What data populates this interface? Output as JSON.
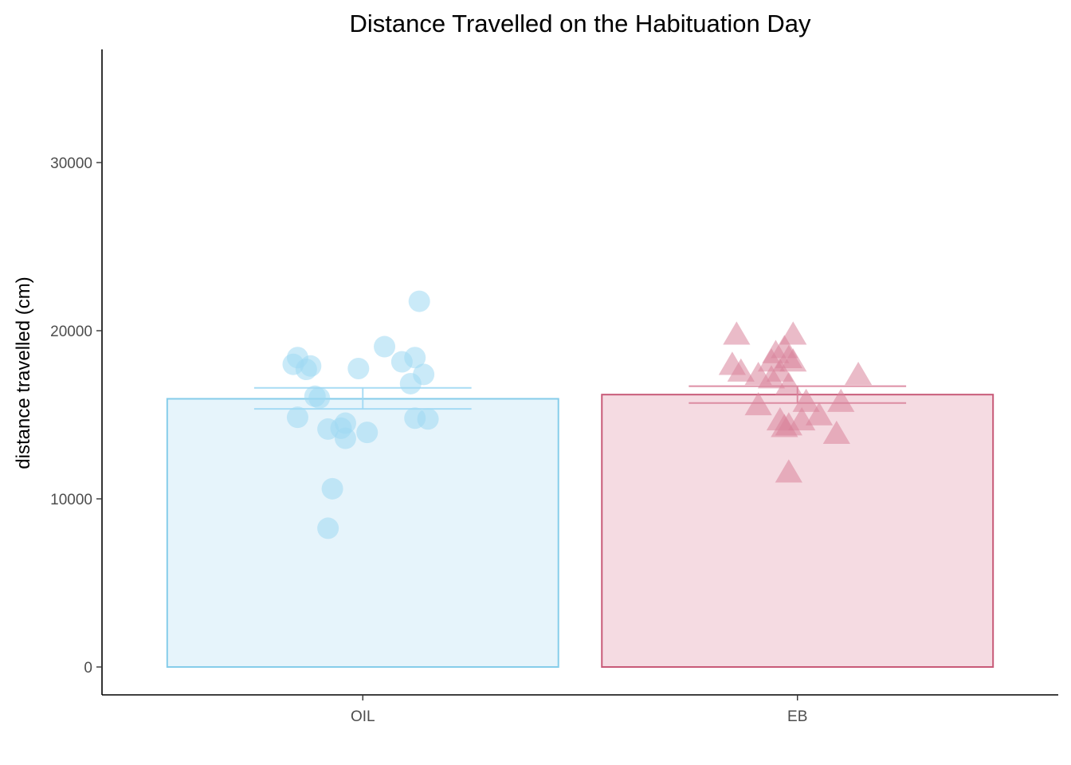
{
  "chart_data": {
    "type": "bar",
    "title": "Distance Travelled on the Habituation Day",
    "xlabel": "",
    "ylabel": "distance travelled (cm)",
    "ylim": [
      -1700,
      36500
    ],
    "yticks": [
      0,
      10000,
      20000,
      30000
    ],
    "grid": false,
    "legend": "none",
    "categories": [
      "OIL",
      "EB"
    ],
    "series": [
      {
        "category": "OIL",
        "mean": 15950,
        "se_low": 15350,
        "se_high": 16600,
        "fill": "#e6f4fb",
        "stroke": "#86cdea",
        "point_color": "#9ed8f3",
        "marker": "circle",
        "points": [
          {
            "offset": -0.15,
            "y": 18400
          },
          {
            "offset": -0.16,
            "y": 18000
          },
          {
            "offset": -0.12,
            "y": 17900
          },
          {
            "offset": -0.13,
            "y": 17700
          },
          {
            "offset": -0.11,
            "y": 16100
          },
          {
            "offset": -0.1,
            "y": 16000
          },
          {
            "offset": -0.15,
            "y": 14850
          },
          {
            "offset": -0.08,
            "y": 14150
          },
          {
            "offset": -0.05,
            "y": 14200
          },
          {
            "offset": -0.04,
            "y": 14500
          },
          {
            "offset": -0.04,
            "y": 13600
          },
          {
            "offset": 0.01,
            "y": 13950
          },
          {
            "offset": -0.07,
            "y": 10600
          },
          {
            "offset": -0.08,
            "y": 8250
          },
          {
            "offset": -0.01,
            "y": 17750
          },
          {
            "offset": 0.05,
            "y": 19050
          },
          {
            "offset": 0.09,
            "y": 18150
          },
          {
            "offset": 0.12,
            "y": 18400
          },
          {
            "offset": 0.14,
            "y": 17400
          },
          {
            "offset": 0.11,
            "y": 16850
          },
          {
            "offset": 0.12,
            "y": 14800
          },
          {
            "offset": 0.15,
            "y": 14750
          },
          {
            "offset": 0.13,
            "y": 21750
          }
        ]
      },
      {
        "category": "EB",
        "mean": 16200,
        "se_low": 15700,
        "se_high": 16700,
        "fill": "#f5dbe2",
        "stroke": "#c85a78",
        "point_color": "#d9839b",
        "marker": "triangle",
        "points": [
          {
            "offset": -0.14,
            "y": 19700
          },
          {
            "offset": -0.15,
            "y": 17900
          },
          {
            "offset": -0.13,
            "y": 17500
          },
          {
            "offset": -0.09,
            "y": 17300
          },
          {
            "offset": -0.06,
            "y": 18100
          },
          {
            "offset": -0.05,
            "y": 18600
          },
          {
            "offset": -0.03,
            "y": 18900
          },
          {
            "offset": -0.04,
            "y": 17500
          },
          {
            "offset": -0.06,
            "y": 17100
          },
          {
            "offset": -0.02,
            "y": 18300
          },
          {
            "offset": -0.01,
            "y": 19700
          },
          {
            "offset": -0.01,
            "y": 18100
          },
          {
            "offset": -0.02,
            "y": 16700
          },
          {
            "offset": -0.09,
            "y": 15500
          },
          {
            "offset": 0.02,
            "y": 15700
          },
          {
            "offset": -0.04,
            "y": 14600
          },
          {
            "offset": -0.03,
            "y": 14200
          },
          {
            "offset": -0.02,
            "y": 14300
          },
          {
            "offset": 0.01,
            "y": 14600
          },
          {
            "offset": 0.05,
            "y": 14900
          },
          {
            "offset": 0.09,
            "y": 13800
          },
          {
            "offset": 0.1,
            "y": 15700
          },
          {
            "offset": 0.14,
            "y": 17300
          },
          {
            "offset": -0.02,
            "y": 11500
          }
        ]
      }
    ]
  }
}
